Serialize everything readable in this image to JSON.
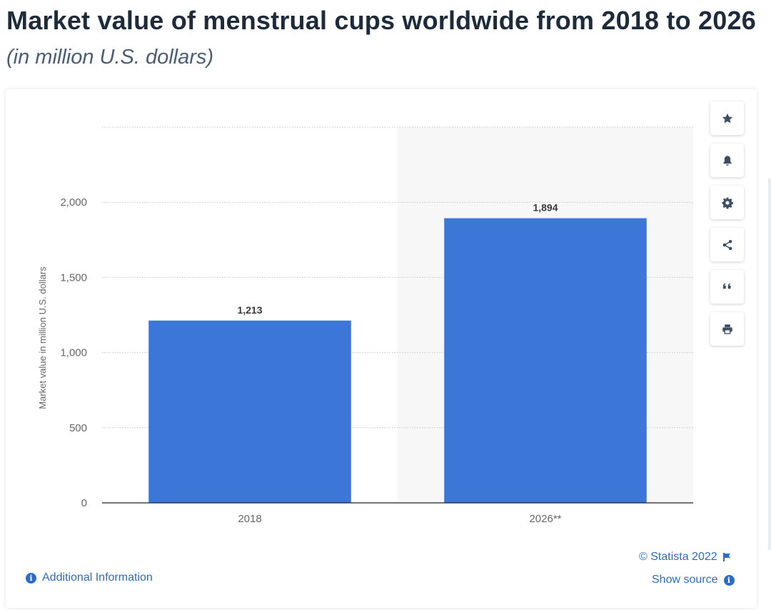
{
  "header": {
    "title": "Market value of menstrual cups worldwide from 2018 to 2026",
    "subtitle": "(in million U.S. dollars)"
  },
  "chart_data": {
    "type": "bar",
    "categories": [
      "2018",
      "2026**"
    ],
    "values": [
      1213,
      1894
    ],
    "value_labels": [
      "1,213",
      "1,894"
    ],
    "ylabel": "Market value in million U.S. dollars",
    "ylim": [
      0,
      2500
    ],
    "yticks": [
      0,
      500,
      1000,
      1500,
      2000
    ],
    "ytick_labels": [
      "0",
      "500",
      "1,000",
      "1,500",
      "2,000"
    ],
    "grid": true,
    "forecast_categories": [
      "2026**"
    ],
    "bar_color": "#3c77d8"
  },
  "toolbar": {
    "items": [
      {
        "name": "favorite",
        "icon": "star-icon"
      },
      {
        "name": "notify",
        "icon": "bell-icon"
      },
      {
        "name": "settings",
        "icon": "gear-icon"
      },
      {
        "name": "share",
        "icon": "share-icon"
      },
      {
        "name": "cite",
        "icon": "quote-icon"
      },
      {
        "name": "print",
        "icon": "print-icon"
      }
    ]
  },
  "footer": {
    "copyright": "© Statista 2022",
    "additional_info": "Additional Information",
    "show_source": "Show source"
  },
  "colors": {
    "accent": "#2c6bc9",
    "title": "#1d2b3a",
    "subtitle": "#4a5d75",
    "icon": "#3f4f63"
  }
}
